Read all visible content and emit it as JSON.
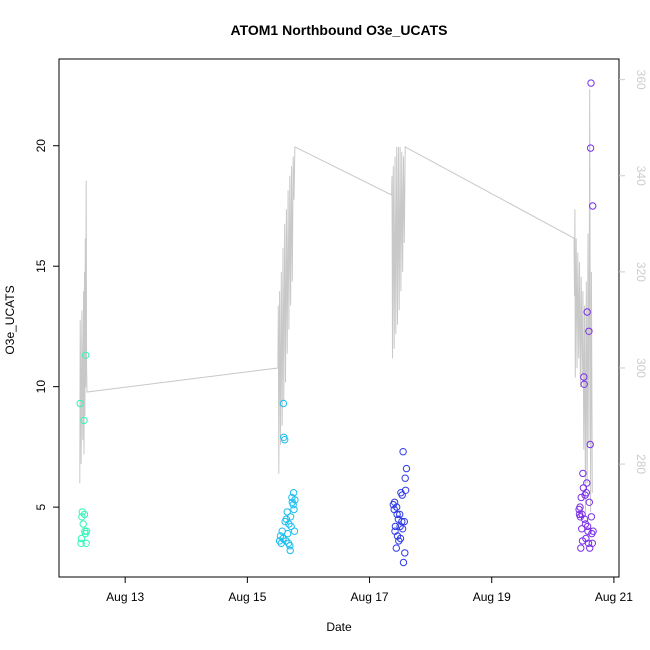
{
  "chart_data": {
    "type": "scatter",
    "title": "ATOM1 Northbound O3e_UCATS",
    "xlabel": "Date",
    "ylabel": "O3e_UCATS",
    "xlim": [
      "2016-08-11T22:00",
      "2016-08-21T02:00"
    ],
    "ylim": [
      2.1,
      23.6
    ],
    "x_ticks": [
      {
        "label": "Aug 13",
        "value": "2016-08-13"
      },
      {
        "label": "Aug 15",
        "value": "2016-08-15"
      },
      {
        "label": "Aug 17",
        "value": "2016-08-17"
      },
      {
        "label": "Aug 19",
        "value": "2016-08-19"
      },
      {
        "label": "Aug 21",
        "value": "2016-08-21"
      }
    ],
    "y_ticks": [
      5,
      10,
      15,
      20
    ],
    "y2_ticks": [
      280,
      300,
      320,
      340,
      360
    ],
    "y2lim": [
      256.5,
      364.3
    ],
    "grid": false,
    "legend": "none",
    "colors": {
      "line": "#c8c8c8",
      "right_axis": "#cccccc",
      "flight1": "#33f5b8",
      "flight2": "#18bef0",
      "flight3": "#2f3ae8",
      "flight4": "#7a2fe8"
    },
    "series": [
      {
        "color_key": "flight1",
        "points": [
          [
            "2016-08-12T06:20",
            9.3
          ],
          [
            "2016-08-12T06:40",
            3.5
          ],
          [
            "2016-08-12T06:50",
            3.7
          ],
          [
            "2016-08-12T07:00",
            4.6
          ],
          [
            "2016-08-12T07:10",
            4.8
          ],
          [
            "2016-08-12T07:30",
            4.3
          ],
          [
            "2016-08-12T07:50",
            8.6
          ],
          [
            "2016-08-12T08:00",
            4.7
          ],
          [
            "2016-08-12T08:10",
            4.0
          ],
          [
            "2016-08-12T08:20",
            3.9
          ],
          [
            "2016-08-12T08:30",
            11.3
          ],
          [
            "2016-08-12T08:40",
            3.5
          ],
          [
            "2016-08-12T08:50",
            4.0
          ]
        ]
      },
      {
        "color_key": "flight2",
        "points": [
          [
            "2016-08-15T12:40",
            3.6
          ],
          [
            "2016-08-15T13:00",
            3.8
          ],
          [
            "2016-08-15T13:20",
            3.5
          ],
          [
            "2016-08-15T13:40",
            4.0
          ],
          [
            "2016-08-15T14:00",
            3.7
          ],
          [
            "2016-08-15T14:10",
            9.3
          ],
          [
            "2016-08-15T14:20",
            7.9
          ],
          [
            "2016-08-15T14:40",
            7.8
          ],
          [
            "2016-08-15T14:50",
            4.4
          ],
          [
            "2016-08-15T15:10",
            3.6
          ],
          [
            "2016-08-15T15:20",
            4.5
          ],
          [
            "2016-08-15T15:40",
            4.8
          ],
          [
            "2016-08-15T15:50",
            3.9
          ],
          [
            "2016-08-15T16:10",
            3.5
          ],
          [
            "2016-08-15T16:20",
            4.3
          ],
          [
            "2016-08-15T16:40",
            3.4
          ],
          [
            "2016-08-15T16:50",
            3.2
          ],
          [
            "2016-08-15T17:00",
            4.6
          ],
          [
            "2016-08-15T17:10",
            4.2
          ],
          [
            "2016-08-15T17:30",
            5.4
          ],
          [
            "2016-08-15T17:40",
            5.2
          ],
          [
            "2016-08-15T18:00",
            5.1
          ],
          [
            "2016-08-15T18:10",
            5.6
          ],
          [
            "2016-08-15T18:20",
            4.9
          ],
          [
            "2016-08-15T18:30",
            4.0
          ],
          [
            "2016-08-15T18:40",
            5.3
          ]
        ]
      },
      {
        "color_key": "flight3",
        "points": [
          [
            "2016-08-17T09:20",
            5.1
          ],
          [
            "2016-08-17T09:40",
            4.9
          ],
          [
            "2016-08-17T09:50",
            5.2
          ],
          [
            "2016-08-17T10:00",
            4.0
          ],
          [
            "2016-08-17T10:10",
            4.2
          ],
          [
            "2016-08-17T10:30",
            3.3
          ],
          [
            "2016-08-17T10:40",
            5.0
          ],
          [
            "2016-08-17T10:50",
            4.7
          ],
          [
            "2016-08-17T11:00",
            3.8
          ],
          [
            "2016-08-17T11:20",
            4.5
          ],
          [
            "2016-08-17T11:30",
            3.6
          ],
          [
            "2016-08-17T11:50",
            4.7
          ],
          [
            "2016-08-17T12:00",
            4.2
          ],
          [
            "2016-08-17T12:10",
            3.7
          ],
          [
            "2016-08-17T12:20",
            5.6
          ],
          [
            "2016-08-17T12:40",
            4.4
          ],
          [
            "2016-08-17T12:50",
            5.5
          ],
          [
            "2016-08-17T13:00",
            4.1
          ],
          [
            "2016-08-17T13:10",
            7.3
          ],
          [
            "2016-08-17T13:20",
            2.7
          ],
          [
            "2016-08-17T13:40",
            4.4
          ],
          [
            "2016-08-17T13:50",
            3.1
          ],
          [
            "2016-08-17T14:00",
            6.2
          ],
          [
            "2016-08-17T14:10",
            5.7
          ],
          [
            "2016-08-17T14:30",
            6.6
          ]
        ]
      },
      {
        "color_key": "flight4",
        "points": [
          [
            "2016-08-20T10:20",
            4.9
          ],
          [
            "2016-08-20T10:30",
            4.7
          ],
          [
            "2016-08-20T10:40",
            5.0
          ],
          [
            "2016-08-20T10:50",
            4.6
          ],
          [
            "2016-08-20T11:00",
            3.3
          ],
          [
            "2016-08-20T11:10",
            5.4
          ],
          [
            "2016-08-20T11:20",
            4.1
          ],
          [
            "2016-08-20T11:30",
            4.7
          ],
          [
            "2016-08-20T11:40",
            3.6
          ],
          [
            "2016-08-20T11:50",
            6.4
          ],
          [
            "2016-08-20T12:00",
            5.8
          ],
          [
            "2016-08-20T12:10",
            10.4
          ],
          [
            "2016-08-20T12:20",
            10.1
          ],
          [
            "2016-08-20T12:30",
            4.5
          ],
          [
            "2016-08-20T12:40",
            5.5
          ],
          [
            "2016-08-20T12:50",
            4.3
          ],
          [
            "2016-08-20T13:00",
            3.7
          ],
          [
            "2016-08-20T13:10",
            5.6
          ],
          [
            "2016-08-20T13:20",
            6.0
          ],
          [
            "2016-08-20T13:30",
            13.1
          ],
          [
            "2016-08-20T13:40",
            4.2
          ],
          [
            "2016-08-20T13:50",
            4.0
          ],
          [
            "2016-08-20T14:00",
            3.5
          ],
          [
            "2016-08-20T14:10",
            12.3
          ],
          [
            "2016-08-20T14:20",
            5.2
          ],
          [
            "2016-08-20T14:30",
            3.3
          ],
          [
            "2016-08-20T14:40",
            7.6
          ],
          [
            "2016-08-20T14:50",
            19.9
          ],
          [
            "2016-08-20T15:00",
            22.6
          ],
          [
            "2016-08-20T15:10",
            4.6
          ],
          [
            "2016-08-20T15:20",
            3.9
          ],
          [
            "2016-08-20T15:30",
            3.5
          ],
          [
            "2016-08-20T15:40",
            17.5
          ],
          [
            "2016-08-20T15:50",
            4.0
          ]
        ]
      }
    ],
    "secondary_line": {
      "axis": "right",
      "points": [
        [
          "2016-08-12T06:10",
          276
        ],
        [
          "2016-08-12T06:20",
          310
        ],
        [
          "2016-08-12T06:30",
          300
        ],
        [
          "2016-08-12T06:40",
          280
        ],
        [
          "2016-08-12T07:00",
          312
        ],
        [
          "2016-08-12T07:20",
          285
        ],
        [
          "2016-08-12T07:40",
          316
        ],
        [
          "2016-08-12T07:50",
          282
        ],
        [
          "2016-08-12T08:00",
          320
        ],
        [
          "2016-08-12T08:10",
          290
        ],
        [
          "2016-08-12T08:20",
          327
        ],
        [
          "2016-08-12T08:30",
          296
        ],
        [
          "2016-08-12T08:40",
          339
        ],
        [
          "2016-08-12T08:50",
          300
        ],
        [
          "2016-08-12T09:00",
          295
        ],
        [
          "2016-08-15T12:00",
          300
        ],
        [
          "2016-08-15T12:10",
          313
        ],
        [
          "2016-08-15T12:20",
          278
        ],
        [
          "2016-08-15T12:40",
          316
        ],
        [
          "2016-08-15T13:00",
          284
        ],
        [
          "2016-08-15T13:20",
          320
        ],
        [
          "2016-08-15T13:40",
          288
        ],
        [
          "2016-08-15T14:00",
          325
        ],
        [
          "2016-08-15T14:20",
          293
        ],
        [
          "2016-08-15T14:40",
          330
        ],
        [
          "2016-08-15T15:00",
          297
        ],
        [
          "2016-08-15T15:20",
          333
        ],
        [
          "2016-08-15T15:40",
          303
        ],
        [
          "2016-08-15T16:00",
          337
        ],
        [
          "2016-08-15T16:20",
          308
        ],
        [
          "2016-08-15T16:40",
          340
        ],
        [
          "2016-08-15T17:00",
          313
        ],
        [
          "2016-08-15T17:20",
          342
        ],
        [
          "2016-08-15T17:40",
          318
        ],
        [
          "2016-08-15T18:00",
          344
        ],
        [
          "2016-08-15T18:20",
          335
        ],
        [
          "2016-08-15T18:40",
          346
        ],
        [
          "2016-08-17T08:40",
          336
        ],
        [
          "2016-08-17T08:50",
          340
        ],
        [
          "2016-08-17T09:00",
          302
        ],
        [
          "2016-08-17T09:20",
          342
        ],
        [
          "2016-08-17T09:40",
          304
        ],
        [
          "2016-08-17T10:00",
          344
        ],
        [
          "2016-08-17T10:20",
          307
        ],
        [
          "2016-08-17T10:40",
          346
        ],
        [
          "2016-08-17T11:00",
          309
        ],
        [
          "2016-08-17T11:20",
          346
        ],
        [
          "2016-08-17T11:40",
          312
        ],
        [
          "2016-08-17T12:00",
          346
        ],
        [
          "2016-08-17T12:20",
          316
        ],
        [
          "2016-08-17T12:40",
          345
        ],
        [
          "2016-08-17T13:00",
          320
        ],
        [
          "2016-08-17T13:20",
          344
        ],
        [
          "2016-08-17T13:40",
          326
        ],
        [
          "2016-08-17T14:00",
          346
        ],
        [
          "2016-08-20T08:20",
          327
        ],
        [
          "2016-08-20T08:30",
          315
        ],
        [
          "2016-08-20T08:40",
          333
        ],
        [
          "2016-08-20T08:50",
          298
        ],
        [
          "2016-08-20T09:10",
          327
        ],
        [
          "2016-08-20T09:30",
          300
        ],
        [
          "2016-08-20T09:50",
          324
        ],
        [
          "2016-08-20T10:10",
          302
        ],
        [
          "2016-08-20T10:30",
          322
        ],
        [
          "2016-08-20T10:50",
          296
        ],
        [
          "2016-08-20T11:10",
          319
        ],
        [
          "2016-08-20T11:30",
          298
        ],
        [
          "2016-08-20T11:50",
          316
        ],
        [
          "2016-08-20T12:10",
          283
        ],
        [
          "2016-08-20T12:30",
          313
        ],
        [
          "2016-08-20T12:50",
          270
        ],
        [
          "2016-08-20T13:10",
          318
        ],
        [
          "2016-08-20T13:30",
          276
        ],
        [
          "2016-08-20T13:50",
          328
        ],
        [
          "2016-08-20T14:10",
          284
        ],
        [
          "2016-08-20T14:30",
          358
        ],
        [
          "2016-08-20T14:50",
          270
        ],
        [
          "2016-08-20T15:10",
          320
        ],
        [
          "2016-08-20T15:30",
          274
        ]
      ]
    }
  }
}
